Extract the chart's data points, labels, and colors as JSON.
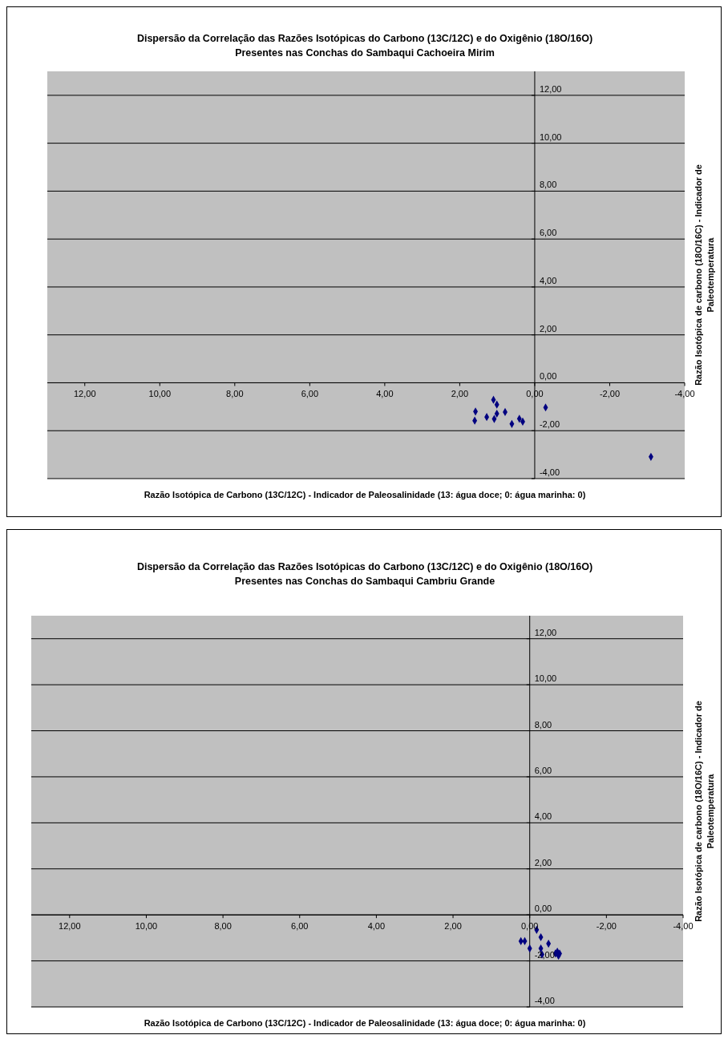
{
  "chart_data": [
    {
      "type": "scatter",
      "title": "Dispersão da Correlação das Razões Isotópicas do Carbono (13C/12C) e do Oxigênio (18O/16O)\nPresentes nas Conchas do Sambaqui Cachoeira Mirim",
      "xlabel": "Razão Isotópica de Carbono (13C/12C) - Indicador de Paleosalinidade (13: água doce; 0: água marinha: 0)",
      "ylabel": "Razão Isotópica de carbono (18O/16C) - Indicador de Paleotemperatura",
      "xlim": [
        13,
        -4
      ],
      "ylim": [
        -4,
        13
      ],
      "xticks": [
        {
          "value": 12,
          "label": "12,00"
        },
        {
          "value": 10,
          "label": "10,00"
        },
        {
          "value": 8,
          "label": "8,00"
        },
        {
          "value": 6,
          "label": "6,00"
        },
        {
          "value": 4,
          "label": "4,00"
        },
        {
          "value": 2,
          "label": "2,00"
        },
        {
          "value": 0,
          "label": "0,00"
        },
        {
          "value": -2,
          "label": "-2,00"
        },
        {
          "value": -4,
          "label": "-4,00"
        }
      ],
      "yticks": [
        {
          "value": -4,
          "label": "-4,00"
        },
        {
          "value": -2,
          "label": "-2,00"
        },
        {
          "value": 0,
          "label": "0,00"
        },
        {
          "value": 2,
          "label": "2,00"
        },
        {
          "value": 4,
          "label": "4,00"
        },
        {
          "value": 6,
          "label": "6,00"
        },
        {
          "value": 8,
          "label": "8,00"
        },
        {
          "value": 10,
          "label": "10,00"
        },
        {
          "value": 12,
          "label": "12,00"
        }
      ],
      "grid": "y",
      "marker": "diamond",
      "legend": false,
      "series": [
        {
          "color": "#000080",
          "x": [
            1.1,
            1.01,
            1.58,
            1.6,
            1.28,
            1.08,
            1.01,
            0.79,
            0.61,
            0.41,
            0.32,
            -0.29,
            -3.1
          ],
          "values": [
            -0.71,
            -0.91,
            -1.2,
            -1.58,
            -1.43,
            -1.51,
            -1.29,
            -1.22,
            -1.72,
            -1.5,
            -1.62,
            -1.03,
            -3.09
          ]
        }
      ]
    },
    {
      "type": "scatter",
      "title": "Dispersão da Correlação das Razões Isotópicas do Carbono (13C/12C) e do Oxigênio (18O/16O)\nPresentes nas Conchas do Sambaqui Cambriu Grande",
      "xlabel": "Razão Isotópica de Carbono (13C/12C) - Indicador de Paleosalinidade (13: água doce; 0: água marinha: 0)",
      "ylabel": "Razão Isotópica de carbono (18O/16C) - Indicador de Paleotemperatura",
      "xlim": [
        13,
        -4
      ],
      "ylim": [
        -4,
        13
      ],
      "xticks": [
        {
          "value": 12,
          "label": "12,00"
        },
        {
          "value": 10,
          "label": "10,00"
        },
        {
          "value": 8,
          "label": "8,00"
        },
        {
          "value": 6,
          "label": "6,00"
        },
        {
          "value": 4,
          "label": "4,00"
        },
        {
          "value": 2,
          "label": "2,00"
        },
        {
          "value": 0,
          "label": "0,00"
        },
        {
          "value": -2,
          "label": "-2,00"
        },
        {
          "value": -4,
          "label": "-4,00"
        }
      ],
      "yticks": [
        {
          "value": -4,
          "label": "-4,00"
        },
        {
          "value": -2,
          "label": "-2,00"
        },
        {
          "value": 0,
          "label": "0,00"
        },
        {
          "value": 2,
          "label": "2,00"
        },
        {
          "value": 4,
          "label": "4,00"
        },
        {
          "value": 6,
          "label": "6,00"
        },
        {
          "value": 8,
          "label": "8,00"
        },
        {
          "value": 10,
          "label": "10,00"
        },
        {
          "value": 12,
          "label": "12,00"
        }
      ],
      "grid": "y",
      "marker": "diamond",
      "legend": false,
      "series": [
        {
          "color": "#000080",
          "x": [
            0.23,
            0.13,
            -0.18,
            -0.29,
            0.0,
            -0.29,
            -0.49,
            -0.32,
            -0.67,
            -0.78,
            -0.72,
            -0.75
          ],
          "values": [
            -1.14,
            -1.14,
            -0.65,
            -0.97,
            -1.46,
            -1.46,
            -1.25,
            -1.72,
            -1.68,
            -1.68,
            -1.6,
            -1.78
          ]
        }
      ]
    }
  ]
}
